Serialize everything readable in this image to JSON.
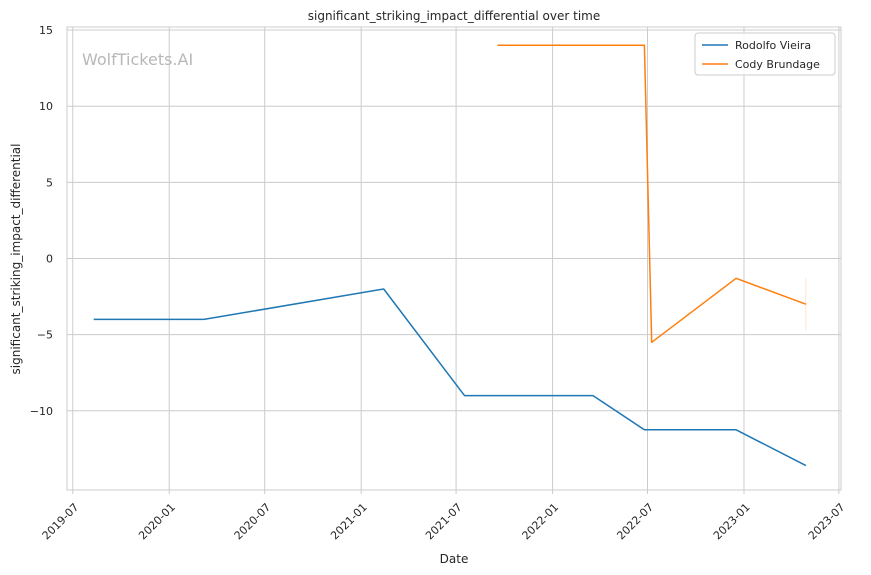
{
  "chart_data": {
    "type": "line",
    "title": "significant_striking_impact_differential over time",
    "xlabel": "Date",
    "ylabel": "significant_striking_impact_differential",
    "watermark": "WolfTickets.AI",
    "x_type": "date",
    "xlim": [
      "2019-06-20",
      "2023-07-05"
    ],
    "ylim": [
      -15.2,
      15.2
    ],
    "x_ticks": [
      "2019-07-01",
      "2020-01-01",
      "2020-07-01",
      "2021-01-01",
      "2021-07-01",
      "2022-01-01",
      "2022-07-01",
      "2023-01-01",
      "2023-07-01"
    ],
    "x_tick_labels": [
      "2019-07",
      "2020-01",
      "2020-07",
      "2021-01",
      "2021-07",
      "2022-01",
      "2022-07",
      "2023-01",
      "2023-07"
    ],
    "y_ticks": [
      -10,
      -5,
      0,
      5,
      10,
      15
    ],
    "y_tick_labels": [
      "−10",
      "−5",
      "0",
      "5",
      "10",
      "15"
    ],
    "grid": true,
    "legend_position": "top-right",
    "series": [
      {
        "name": "Rodolfo Vieira",
        "color": "#1f77b4",
        "points": [
          {
            "x": "2019-08-10",
            "y": -4.0
          },
          {
            "x": "2020-03-07",
            "y": -4.0
          },
          {
            "x": "2021-02-13",
            "y": -2.0
          },
          {
            "x": "2021-07-17",
            "y": -9.0
          },
          {
            "x": "2022-03-19",
            "y": -9.0
          },
          {
            "x": "2022-06-25",
            "y": -11.25
          },
          {
            "x": "2022-12-17",
            "y": -11.25
          },
          {
            "x": "2023-04-29",
            "y": -13.6
          }
        ]
      },
      {
        "name": "Cody Brundage",
        "color": "#ff7f0e",
        "points": [
          {
            "x": "2021-09-18",
            "y": 14.0
          },
          {
            "x": "2022-06-25",
            "y": 14.0
          },
          {
            "x": "2022-07-09",
            "y": -5.5
          },
          {
            "x": "2022-12-17",
            "y": -1.3
          },
          {
            "x": "2023-04-29",
            "y": -3.0
          }
        ]
      }
    ]
  }
}
